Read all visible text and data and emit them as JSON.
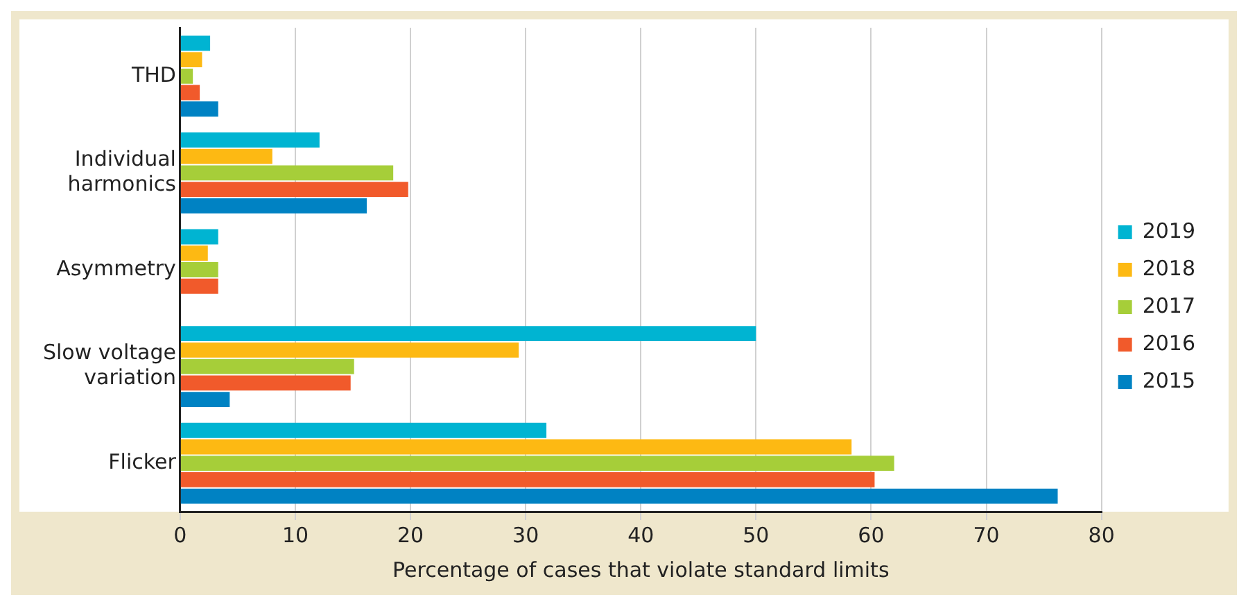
{
  "chart_data": {
    "type": "bar",
    "orientation": "horizontal",
    "xlabel": "Percentage of cases that violate standard limits",
    "categories": [
      "THD",
      "Individual harmonics",
      "Asymmetry",
      "Slow voltage variation",
      "Flicker"
    ],
    "series": [
      {
        "name": "2019",
        "color": "#00b4d2",
        "values": [
          2.6,
          12.1,
          3.3,
          50,
          31.8
        ]
      },
      {
        "name": "2018",
        "color": "#fdb913",
        "values": [
          1.9,
          8.0,
          2.4,
          29.4,
          58.3
        ]
      },
      {
        "name": "2017",
        "color": "#a6ce39",
        "values": [
          1.1,
          18.5,
          3.3,
          15.1,
          62
        ]
      },
      {
        "name": "2016",
        "color": "#f15a2b",
        "values": [
          1.7,
          19.8,
          3.3,
          14.8,
          60.3
        ]
      },
      {
        "name": "2015",
        "color": "#0082c3",
        "values": [
          3.3,
          16.2,
          null,
          4.3,
          76.2
        ]
      }
    ],
    "xlim": [
      0,
      80
    ],
    "xticks": [
      0,
      10,
      20,
      30,
      40,
      50,
      60,
      70,
      80
    ],
    "grid": "x",
    "legend": "right"
  }
}
